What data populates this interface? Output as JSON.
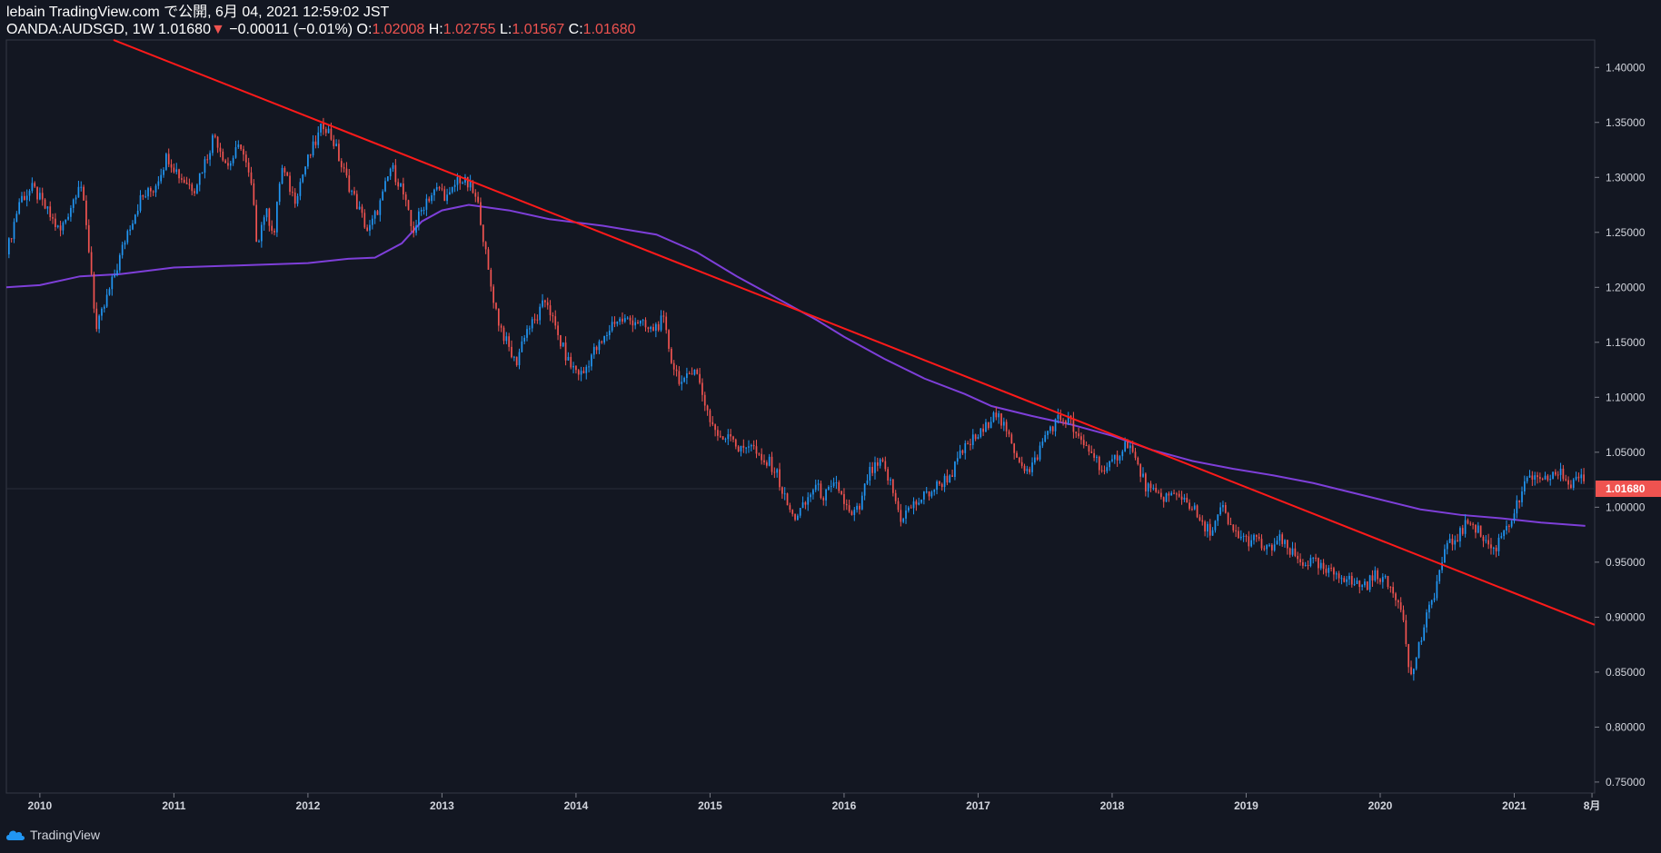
{
  "header": {
    "line1": "lebain TradingView.com で公開, 6月 04, 2021 12:59:02 JST",
    "symbol": "OANDA:AUDSGD, 1W",
    "last": "1.01680",
    "change_arrow": "▼",
    "change": "−0.00011 (−0.01%)",
    "open_label": "O:",
    "open": "1.02008",
    "high_label": "H:",
    "high": "1.02755",
    "low_label": "L:",
    "low": "1.01567",
    "close_label": "C:",
    "close": "1.01680"
  },
  "footer": {
    "brand": "TradingView",
    "logo_icon": "tradingview-cloud-icon"
  },
  "colors": {
    "background": "#131722",
    "up": "#2196f3",
    "down": "#ef5350",
    "trendline": "#ff1a1a",
    "moving_average": "#7e3fd9",
    "axis_text": "#d1d4dc",
    "price_tag_bg": "#ef5350"
  },
  "chart_data": {
    "type": "candlestick",
    "symbol": "OANDA:AUDSGD",
    "timeframe": "1W",
    "ylim": [
      0.74,
      1.425
    ],
    "xlim": [
      2009.75,
      2021.6
    ],
    "y_ticks": [
      "1.40000",
      "1.35000",
      "1.30000",
      "1.25000",
      "1.20000",
      "1.15000",
      "1.10000",
      "1.05000",
      "1.00000",
      "0.95000",
      "0.90000",
      "0.85000",
      "0.80000",
      "0.75000"
    ],
    "x_ticks": [
      "2010",
      "2011",
      "2012",
      "2013",
      "2014",
      "2015",
      "2016",
      "2017",
      "2018",
      "2019",
      "2020",
      "2021",
      "8月"
    ],
    "current_price_label": "1.01680",
    "current_price": 1.0168,
    "close_path": [
      [
        2009.75,
        1.23
      ],
      [
        2009.85,
        1.28
      ],
      [
        2009.95,
        1.29
      ],
      [
        2010.05,
        1.27
      ],
      [
        2010.15,
        1.25
      ],
      [
        2010.25,
        1.28
      ],
      [
        2010.3,
        1.3
      ],
      [
        2010.38,
        1.22
      ],
      [
        2010.42,
        1.16
      ],
      [
        2010.5,
        1.19
      ],
      [
        2010.58,
        1.22
      ],
      [
        2010.65,
        1.25
      ],
      [
        2010.75,
        1.28
      ],
      [
        2010.85,
        1.29
      ],
      [
        2010.95,
        1.32
      ],
      [
        2011.05,
        1.3
      ],
      [
        2011.15,
        1.29
      ],
      [
        2011.25,
        1.32
      ],
      [
        2011.3,
        1.34
      ],
      [
        2011.4,
        1.31
      ],
      [
        2011.5,
        1.33
      ],
      [
        2011.58,
        1.29
      ],
      [
        2011.62,
        1.24
      ],
      [
        2011.68,
        1.27
      ],
      [
        2011.75,
        1.25
      ],
      [
        2011.8,
        1.31
      ],
      [
        2011.9,
        1.28
      ],
      [
        2011.98,
        1.31
      ],
      [
        2012.05,
        1.33
      ],
      [
        2012.12,
        1.35
      ],
      [
        2012.2,
        1.33
      ],
      [
        2012.25,
        1.31
      ],
      [
        2012.35,
        1.28
      ],
      [
        2012.45,
        1.25
      ],
      [
        2012.55,
        1.28
      ],
      [
        2012.62,
        1.31
      ],
      [
        2012.7,
        1.29
      ],
      [
        2012.78,
        1.25
      ],
      [
        2012.88,
        1.28
      ],
      [
        2012.98,
        1.29
      ],
      [
        2013.05,
        1.28
      ],
      [
        2013.12,
        1.3
      ],
      [
        2013.22,
        1.29
      ],
      [
        2013.28,
        1.27
      ],
      [
        2013.35,
        1.21
      ],
      [
        2013.42,
        1.17
      ],
      [
        2013.48,
        1.15
      ],
      [
        2013.55,
        1.13
      ],
      [
        2013.62,
        1.16
      ],
      [
        2013.7,
        1.17
      ],
      [
        2013.78,
        1.19
      ],
      [
        2013.85,
        1.16
      ],
      [
        2013.95,
        1.13
      ],
      [
        2014.05,
        1.12
      ],
      [
        2014.12,
        1.14
      ],
      [
        2014.2,
        1.15
      ],
      [
        2014.28,
        1.17
      ],
      [
        2014.35,
        1.17
      ],
      [
        2014.45,
        1.17
      ],
      [
        2014.55,
        1.16
      ],
      [
        2014.65,
        1.17
      ],
      [
        2014.72,
        1.13
      ],
      [
        2014.8,
        1.11
      ],
      [
        2014.88,
        1.13
      ],
      [
        2014.95,
        1.1
      ],
      [
        2015.0,
        1.08
      ],
      [
        2015.08,
        1.06
      ],
      [
        2015.15,
        1.07
      ],
      [
        2015.22,
        1.05
      ],
      [
        2015.3,
        1.06
      ],
      [
        2015.38,
        1.04
      ],
      [
        2015.45,
        1.04
      ],
      [
        2015.5,
        1.03
      ],
      [
        2015.55,
        1.01
      ],
      [
        2015.62,
        0.99
      ],
      [
        2015.7,
        1.0
      ],
      [
        2015.78,
        1.02
      ],
      [
        2015.85,
        1.01
      ],
      [
        2015.95,
        1.02
      ],
      [
        2016.05,
        0.99
      ],
      [
        2016.12,
        1.0
      ],
      [
        2016.18,
        1.03
      ],
      [
        2016.28,
        1.04
      ],
      [
        2016.35,
        1.02
      ],
      [
        2016.42,
        0.99
      ],
      [
        2016.5,
        1.0
      ],
      [
        2016.6,
        1.01
      ],
      [
        2016.7,
        1.02
      ],
      [
        2016.8,
        1.03
      ],
      [
        2016.88,
        1.05
      ],
      [
        2016.95,
        1.06
      ],
      [
        2017.05,
        1.07
      ],
      [
        2017.12,
        1.09
      ],
      [
        2017.2,
        1.07
      ],
      [
        2017.28,
        1.05
      ],
      [
        2017.38,
        1.03
      ],
      [
        2017.45,
        1.05
      ],
      [
        2017.52,
        1.07
      ],
      [
        2017.6,
        1.08
      ],
      [
        2017.68,
        1.08
      ],
      [
        2017.75,
        1.06
      ],
      [
        2017.85,
        1.05
      ],
      [
        2017.95,
        1.03
      ],
      [
        2018.05,
        1.05
      ],
      [
        2018.12,
        1.06
      ],
      [
        2018.18,
        1.04
      ],
      [
        2018.25,
        1.02
      ],
      [
        2018.32,
        1.01
      ],
      [
        2018.42,
        1.01
      ],
      [
        2018.52,
        1.01
      ],
      [
        2018.6,
        1.0
      ],
      [
        2018.68,
        0.98
      ],
      [
        2018.75,
        0.98
      ],
      [
        2018.82,
        1.0
      ],
      [
        2018.88,
        0.98
      ],
      [
        2019.0,
        0.97
      ],
      [
        2019.08,
        0.97
      ],
      [
        2019.15,
        0.96
      ],
      [
        2019.25,
        0.97
      ],
      [
        2019.32,
        0.96
      ],
      [
        2019.4,
        0.95
      ],
      [
        2019.5,
        0.95
      ],
      [
        2019.6,
        0.94
      ],
      [
        2019.7,
        0.94
      ],
      [
        2019.8,
        0.93
      ],
      [
        2019.9,
        0.93
      ],
      [
        2019.98,
        0.94
      ],
      [
        2020.05,
        0.93
      ],
      [
        2020.12,
        0.92
      ],
      [
        2020.18,
        0.9
      ],
      [
        2020.22,
        0.84
      ],
      [
        2020.28,
        0.87
      ],
      [
        2020.35,
        0.9
      ],
      [
        2020.42,
        0.93
      ],
      [
        2020.48,
        0.96
      ],
      [
        2020.55,
        0.97
      ],
      [
        2020.62,
        0.98
      ],
      [
        2020.68,
        0.99
      ],
      [
        2020.72,
        0.98
      ],
      [
        2020.78,
        0.97
      ],
      [
        2020.85,
        0.96
      ],
      [
        2020.92,
        0.98
      ],
      [
        2020.98,
        0.99
      ],
      [
        2021.05,
        1.01
      ],
      [
        2021.12,
        1.03
      ],
      [
        2021.2,
        1.02
      ],
      [
        2021.28,
        1.03
      ],
      [
        2021.35,
        1.03
      ],
      [
        2021.42,
        1.02
      ],
      [
        2021.48,
        1.03
      ],
      [
        2021.53,
        1.0168
      ]
    ],
    "moving_average": [
      [
        2009.75,
        1.2
      ],
      [
        2010.0,
        1.202
      ],
      [
        2010.3,
        1.21
      ],
      [
        2010.6,
        1.212
      ],
      [
        2011.0,
        1.218
      ],
      [
        2011.5,
        1.22
      ],
      [
        2012.0,
        1.222
      ],
      [
        2012.3,
        1.226
      ],
      [
        2012.5,
        1.227
      ],
      [
        2012.7,
        1.24
      ],
      [
        2012.85,
        1.26
      ],
      [
        2013.0,
        1.27
      ],
      [
        2013.2,
        1.275
      ],
      [
        2013.5,
        1.27
      ],
      [
        2013.8,
        1.262
      ],
      [
        2014.2,
        1.256
      ],
      [
        2014.6,
        1.248
      ],
      [
        2014.9,
        1.232
      ],
      [
        2015.2,
        1.21
      ],
      [
        2015.5,
        1.19
      ],
      [
        2015.8,
        1.17
      ],
      [
        2016.0,
        1.155
      ],
      [
        2016.3,
        1.135
      ],
      [
        2016.6,
        1.117
      ],
      [
        2016.9,
        1.103
      ],
      [
        2017.1,
        1.092
      ],
      [
        2017.4,
        1.083
      ],
      [
        2017.7,
        1.075
      ],
      [
        2018.0,
        1.065
      ],
      [
        2018.3,
        1.052
      ],
      [
        2018.6,
        1.042
      ],
      [
        2018.9,
        1.035
      ],
      [
        2019.2,
        1.029
      ],
      [
        2019.5,
        1.022
      ],
      [
        2019.8,
        1.013
      ],
      [
        2020.0,
        1.007
      ],
      [
        2020.3,
        0.998
      ],
      [
        2020.6,
        0.993
      ],
      [
        2020.9,
        0.99
      ],
      [
        2021.2,
        0.986
      ],
      [
        2021.53,
        0.983
      ]
    ],
    "trendline": [
      [
        2010.55,
        1.425
      ],
      [
        2021.6,
        0.893
      ]
    ],
    "legend": "none",
    "grid": "off"
  }
}
